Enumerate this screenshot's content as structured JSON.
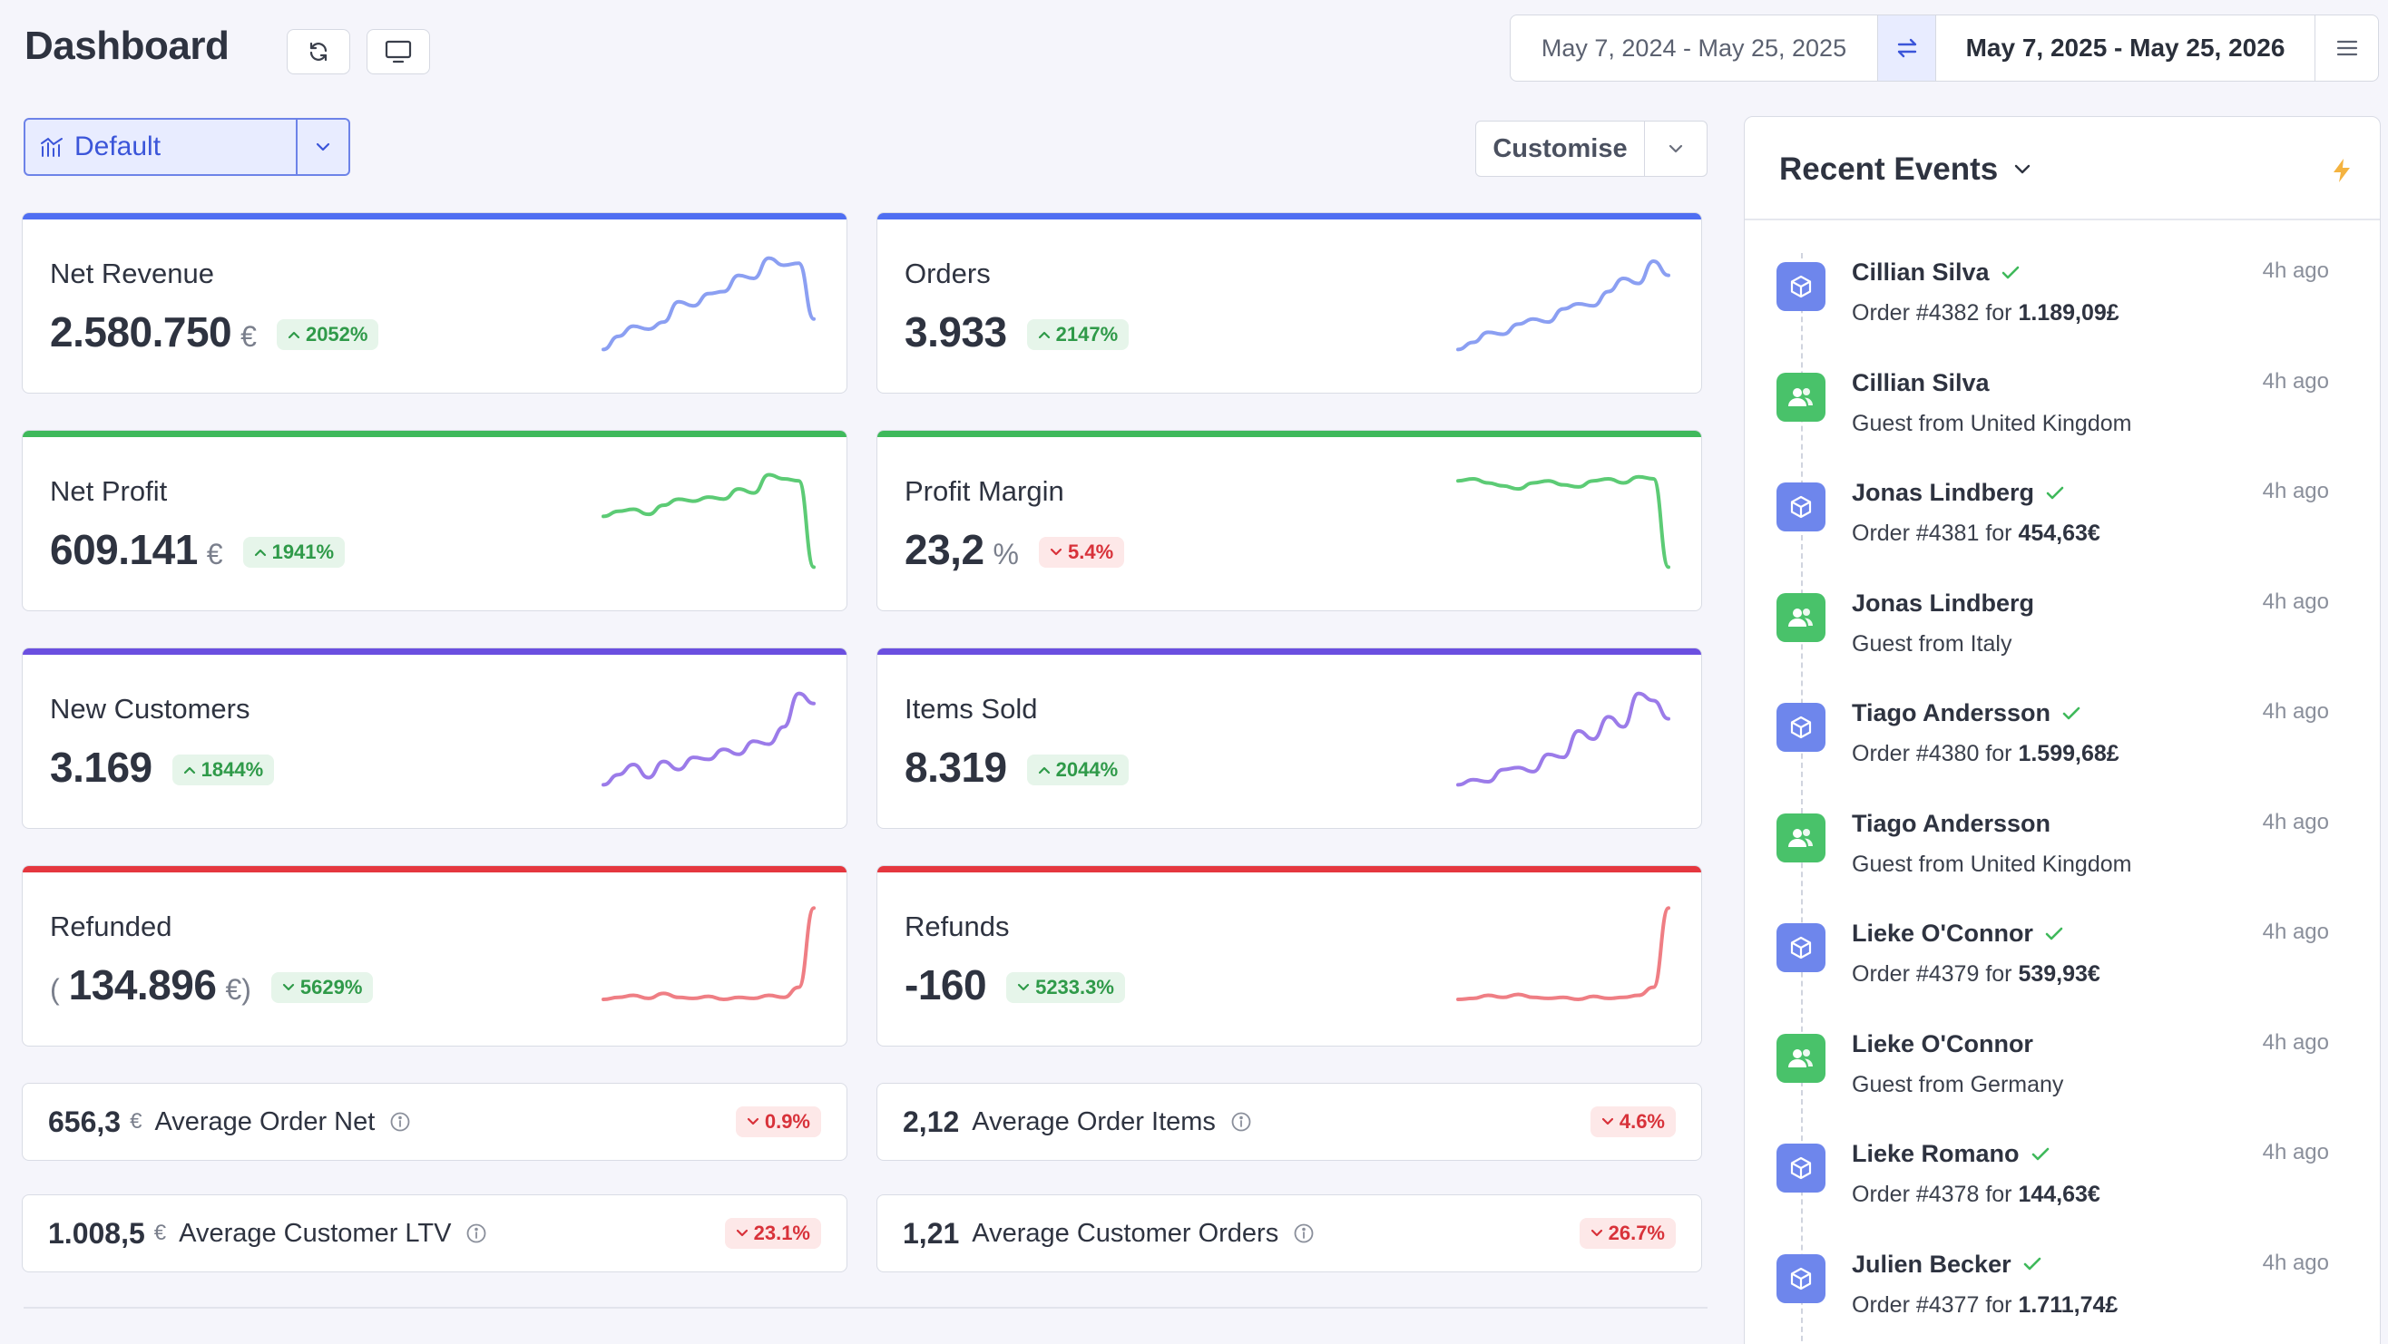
{
  "header": {
    "title": "Dashboard",
    "refresh_icon": "refresh-icon",
    "display_icon": "monitor-icon",
    "date_range_previous": "May 7, 2024 - May 25, 2025",
    "date_range_current": "May 7, 2025 - May 25, 2026",
    "swap_icon": "swap-arrows-icon",
    "menu_icon": "hamburger-menu-icon"
  },
  "toolbar": {
    "preset_label": "Default",
    "customise_label": "Customise"
  },
  "colors": {
    "blue": "#4f6ef2",
    "green": "#3fb95b",
    "purple": "#6b4fe0",
    "red": "#e5373f",
    "spark_blue": "#8b9ff2",
    "spark_green": "#5ccb75",
    "spark_purple": "#9b7be9",
    "spark_red": "#ef7e84"
  },
  "cards": [
    {
      "name": "Net Revenue",
      "value": "2.580.750",
      "unit": "€",
      "prefix": "",
      "suffix": "",
      "change": "2052%",
      "direction": "up",
      "color": "blue",
      "trend": [
        0.05,
        0.18,
        0.28,
        0.25,
        0.32,
        0.52,
        0.48,
        0.6,
        0.62,
        0.78,
        0.75,
        0.95,
        0.88,
        0.9,
        0.35
      ]
    },
    {
      "name": "Orders",
      "value": "3.933",
      "unit": "",
      "prefix": "",
      "suffix": "",
      "change": "2147%",
      "direction": "up",
      "color": "blue",
      "trend": [
        0.05,
        0.12,
        0.22,
        0.2,
        0.3,
        0.35,
        0.32,
        0.45,
        0.5,
        0.48,
        0.62,
        0.75,
        0.7,
        0.92,
        0.78
      ]
    },
    {
      "name": "Net Profit",
      "value": "609.141",
      "unit": "€",
      "prefix": "",
      "suffix": "",
      "change": "1941%",
      "direction": "up",
      "color": "green",
      "trend": [
        0.55,
        0.6,
        0.62,
        0.57,
        0.66,
        0.72,
        0.7,
        0.74,
        0.72,
        0.82,
        0.78,
        0.96,
        0.92,
        0.9,
        0.05
      ]
    },
    {
      "name": "Profit Margin",
      "value": "23,2",
      "unit": "%",
      "prefix": "",
      "suffix": "",
      "change": "5.4%",
      "direction": "down",
      "color": "green",
      "trend": [
        0.9,
        0.92,
        0.88,
        0.85,
        0.82,
        0.88,
        0.9,
        0.86,
        0.84,
        0.9,
        0.92,
        0.88,
        0.94,
        0.92,
        0.05
      ]
    },
    {
      "name": "New Customers",
      "value": "3.169",
      "unit": "",
      "prefix": "",
      "suffix": "",
      "change": "1844%",
      "direction": "up",
      "color": "purple",
      "trend": [
        0.05,
        0.15,
        0.25,
        0.12,
        0.28,
        0.2,
        0.32,
        0.3,
        0.4,
        0.35,
        0.48,
        0.45,
        0.62,
        0.95,
        0.85
      ]
    },
    {
      "name": "Items Sold",
      "value": "8.319",
      "unit": "",
      "prefix": "",
      "suffix": "",
      "change": "2044%",
      "direction": "up",
      "color": "purple",
      "trend": [
        0.05,
        0.1,
        0.08,
        0.2,
        0.22,
        0.18,
        0.35,
        0.32,
        0.58,
        0.5,
        0.72,
        0.62,
        0.95,
        0.88,
        0.7
      ]
    },
    {
      "name": "Refunded",
      "value": "134.896",
      "unit": "€",
      "prefix": "(",
      "suffix": ")",
      "change": "5629%",
      "direction": "up-down",
      "color": "red",
      "trend": [
        0.08,
        0.1,
        0.12,
        0.09,
        0.14,
        0.1,
        0.09,
        0.11,
        0.08,
        0.1,
        0.09,
        0.12,
        0.1,
        0.2,
        0.98
      ]
    },
    {
      "name": "Refunds",
      "value": "-160",
      "unit": "",
      "prefix": "",
      "suffix": "",
      "change": "5233.3%",
      "direction": "up-down",
      "color": "red",
      "trend": [
        0.08,
        0.09,
        0.12,
        0.1,
        0.13,
        0.1,
        0.09,
        0.1,
        0.08,
        0.11,
        0.09,
        0.1,
        0.12,
        0.2,
        0.98
      ]
    }
  ],
  "stats": [
    {
      "value": "656,3",
      "unit": "€",
      "label": "Average Order Net",
      "change": "0.9%"
    },
    {
      "value": "2,12",
      "unit": "",
      "label": "Average Order Items",
      "change": "4.6%"
    },
    {
      "value": "1.008,5",
      "unit": "€",
      "label": "Average Customer LTV",
      "change": "23.1%"
    },
    {
      "value": "1,21",
      "unit": "",
      "label": "Average Customer Orders",
      "change": "26.7%"
    }
  ],
  "events": {
    "title": "Recent Events",
    "items": [
      {
        "type": "order",
        "who": "Cillian Silva",
        "verified": true,
        "desc_prefix": "Order #4382 for ",
        "desc_bold": "1.189,09£",
        "time": "4h ago"
      },
      {
        "type": "guest",
        "who": "Cillian Silva",
        "verified": false,
        "desc_prefix": "Guest from United Kingdom",
        "desc_bold": "",
        "time": "4h ago"
      },
      {
        "type": "order",
        "who": "Jonas Lindberg",
        "verified": true,
        "desc_prefix": "Order #4381 for ",
        "desc_bold": "454,63€",
        "time": "4h ago"
      },
      {
        "type": "guest",
        "who": "Jonas Lindberg",
        "verified": false,
        "desc_prefix": "Guest from Italy",
        "desc_bold": "",
        "time": "4h ago"
      },
      {
        "type": "order",
        "who": "Tiago Andersson",
        "verified": true,
        "desc_prefix": "Order #4380 for ",
        "desc_bold": "1.599,68£",
        "time": "4h ago"
      },
      {
        "type": "guest",
        "who": "Tiago Andersson",
        "verified": false,
        "desc_prefix": "Guest from United Kingdom",
        "desc_bold": "",
        "time": "4h ago"
      },
      {
        "type": "order",
        "who": "Lieke O'Connor",
        "verified": true,
        "desc_prefix": "Order #4379 for ",
        "desc_bold": "539,93€",
        "time": "4h ago"
      },
      {
        "type": "guest",
        "who": "Lieke O'Connor",
        "verified": false,
        "desc_prefix": "Guest from Germany",
        "desc_bold": "",
        "time": "4h ago"
      },
      {
        "type": "order",
        "who": "Lieke Romano",
        "verified": true,
        "desc_prefix": "Order #4378 for ",
        "desc_bold": "144,63€",
        "time": "4h ago"
      },
      {
        "type": "order",
        "who": "Julien Becker",
        "verified": true,
        "desc_prefix": "Order #4377 for ",
        "desc_bold": "1.711,74£",
        "time": "4h ago"
      }
    ]
  }
}
